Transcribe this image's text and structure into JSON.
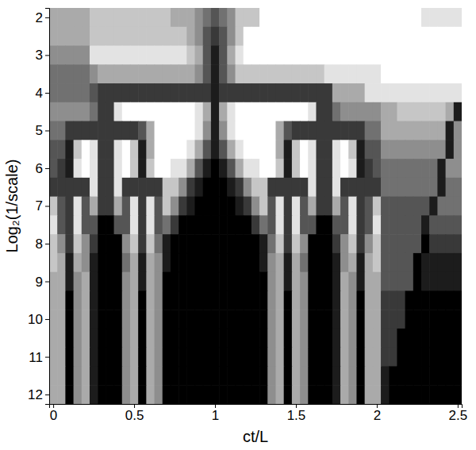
{
  "chart_data": {
    "type": "heatmap",
    "x_label": "ct/L",
    "y_label": "Log₂(1/scale)",
    "xlim": [
      -0.025,
      2.525
    ],
    "ylim": [
      1.75,
      12.25
    ],
    "xticks": [
      0,
      0.5,
      1,
      1.5,
      2,
      2.5
    ],
    "yticks": [
      2,
      3,
      4,
      5,
      6,
      7,
      8,
      9,
      10,
      11,
      12
    ],
    "zlim": [
      0,
      9
    ],
    "x": [
      0,
      0.05,
      0.1,
      0.15,
      0.2,
      0.25,
      0.3,
      0.35,
      0.4,
      0.45,
      0.5,
      0.55,
      0.6,
      0.65,
      0.7,
      0.75,
      0.8,
      0.85,
      0.9,
      0.95,
      1,
      1.05,
      1.1,
      1.15,
      1.2,
      1.25,
      1.3,
      1.35,
      1.4,
      1.45,
      1.5,
      1.55,
      1.6,
      1.65,
      1.7,
      1.75,
      1.8,
      1.85,
      1.9,
      1.95,
      2,
      2.05,
      2.1,
      2.15,
      2.2,
      2.25,
      2.3,
      2.35,
      2.4,
      2.45,
      2.5
    ],
    "y": [
      2,
      2.5,
      3,
      3.5,
      4,
      4.5,
      5,
      5.5,
      6,
      6.5,
      7,
      7.5,
      8,
      8.5,
      9,
      9.5,
      10,
      10.5,
      11,
      11.5,
      12
    ],
    "z": [
      [
        6,
        6,
        6,
        6,
        6,
        7,
        7,
        7,
        7,
        7,
        7,
        7,
        7,
        7,
        7,
        6,
        6,
        6,
        5,
        4,
        3,
        4,
        5,
        7,
        7,
        7,
        9,
        9,
        9,
        9,
        9,
        9,
        9,
        9,
        9,
        9,
        9,
        9,
        9,
        9,
        9,
        9,
        9,
        9,
        9,
        9,
        8,
        8,
        8,
        8,
        8
      ],
      [
        6,
        6,
        6,
        6,
        6,
        7,
        7,
        7,
        7,
        7,
        7,
        7,
        7,
        7,
        7,
        7,
        7,
        6,
        5,
        3,
        2,
        3,
        5,
        7,
        9,
        9,
        9,
        9,
        9,
        9,
        9,
        9,
        9,
        9,
        9,
        9,
        9,
        9,
        9,
        9,
        9,
        9,
        9,
        9,
        9,
        9,
        9,
        9,
        9,
        9,
        9
      ],
      [
        5,
        5,
        5,
        5,
        5,
        8,
        8,
        8,
        8,
        8,
        8,
        8,
        8,
        8,
        8,
        8,
        8,
        7,
        6,
        3,
        1,
        3,
        6,
        8,
        9,
        9,
        9,
        9,
        9,
        9,
        9,
        9,
        9,
        9,
        9,
        9,
        9,
        9,
        9,
        9,
        9,
        9,
        9,
        9,
        9,
        9,
        9,
        9,
        9,
        9,
        9
      ],
      [
        4,
        4,
        4,
        4,
        4,
        5,
        6,
        6,
        6,
        6,
        6,
        6,
        6,
        6,
        6,
        6,
        6,
        6,
        5,
        3,
        1,
        3,
        5,
        7,
        7,
        7,
        7,
        7,
        7,
        7,
        7,
        7,
        7,
        7,
        8,
        8,
        8,
        8,
        8,
        8,
        8,
        9,
        9,
        9,
        9,
        9,
        9,
        9,
        9,
        9,
        9
      ],
      [
        4,
        4,
        4,
        4,
        4,
        3,
        2,
        2,
        2,
        2,
        2,
        2,
        2,
        2,
        2,
        2,
        2,
        2,
        2,
        2,
        1,
        2,
        2,
        2,
        2,
        2,
        2,
        2,
        2,
        2,
        2,
        2,
        2,
        2,
        2,
        6,
        6,
        6,
        6,
        8,
        8,
        8,
        8,
        8,
        8,
        8,
        8,
        8,
        8,
        8,
        8
      ],
      [
        5,
        5,
        5,
        5,
        5,
        4,
        2,
        2,
        8,
        9,
        9,
        9,
        9,
        9,
        9,
        9,
        9,
        9,
        8,
        6,
        1,
        6,
        8,
        9,
        9,
        9,
        9,
        9,
        9,
        9,
        9,
        9,
        8,
        2,
        2,
        4,
        5,
        5,
        5,
        5,
        5,
        6,
        6,
        7,
        7,
        7,
        7,
        7,
        7,
        6,
        1
      ],
      [
        4,
        4,
        2,
        2,
        2,
        2,
        2,
        2,
        2,
        2,
        2,
        3,
        6,
        9,
        9,
        9,
        9,
        9,
        8,
        5,
        1,
        5,
        8,
        9,
        9,
        9,
        9,
        9,
        6,
        3,
        2,
        2,
        2,
        2,
        2,
        2,
        2,
        2,
        2,
        4,
        4,
        6,
        6,
        6,
        6,
        6,
        6,
        6,
        6,
        1,
        5
      ],
      [
        3,
        3,
        1,
        7,
        9,
        8,
        2,
        2,
        8,
        9,
        7,
        1,
        6,
        9,
        9,
        9,
        9,
        8,
        6,
        3,
        1,
        3,
        6,
        8,
        9,
        9,
        9,
        9,
        6,
        1,
        7,
        9,
        8,
        2,
        2,
        8,
        9,
        7,
        1,
        3,
        3,
        5,
        5,
        5,
        5,
        5,
        5,
        5,
        5,
        1,
        5
      ],
      [
        3,
        2,
        1,
        8,
        9,
        8,
        2,
        2,
        8,
        9,
        7,
        1,
        7,
        9,
        9,
        8,
        8,
        6,
        3,
        1,
        0,
        1,
        3,
        6,
        8,
        8,
        9,
        9,
        7,
        1,
        7,
        9,
        8,
        2,
        2,
        8,
        9,
        8,
        1,
        2,
        3,
        4,
        4,
        4,
        4,
        4,
        4,
        4,
        1,
        5,
        5
      ],
      [
        2,
        2,
        2,
        2,
        2,
        8,
        2,
        2,
        8,
        2,
        2,
        2,
        2,
        2,
        7,
        7,
        5,
        2,
        1,
        0,
        0,
        0,
        1,
        2,
        5,
        7,
        7,
        2,
        2,
        2,
        2,
        2,
        8,
        2,
        2,
        8,
        2,
        2,
        2,
        2,
        2,
        4,
        4,
        4,
        4,
        4,
        4,
        4,
        1,
        4,
        4
      ],
      [
        7,
        3,
        2,
        8,
        3,
        6,
        2,
        2,
        6,
        3,
        8,
        2,
        8,
        3,
        7,
        5,
        2,
        1,
        0,
        0,
        0,
        0,
        0,
        1,
        2,
        5,
        7,
        3,
        8,
        2,
        8,
        3,
        6,
        2,
        2,
        6,
        3,
        8,
        2,
        3,
        7,
        3,
        3,
        3,
        3,
        3,
        3,
        1,
        4,
        4,
        4
      ],
      [
        8,
        3,
        2,
        8,
        3,
        3,
        0,
        0,
        3,
        3,
        8,
        2,
        8,
        3,
        4,
        2,
        0,
        0,
        0,
        0,
        0,
        0,
        0,
        0,
        0,
        2,
        4,
        3,
        8,
        2,
        8,
        3,
        3,
        0,
        0,
        3,
        3,
        8,
        2,
        3,
        8,
        3,
        3,
        3,
        3,
        3,
        1,
        3,
        3,
        3,
        3
      ],
      [
        7,
        5,
        2,
        7,
        5,
        2,
        0,
        0,
        0,
        5,
        7,
        2,
        7,
        4,
        1,
        0,
        0,
        0,
        0,
        0,
        0,
        0,
        0,
        0,
        0,
        0,
        1,
        4,
        7,
        2,
        7,
        5,
        0,
        0,
        0,
        2,
        5,
        7,
        2,
        5,
        7,
        3,
        3,
        3,
        3,
        3,
        0,
        2,
        2,
        2,
        2
      ],
      [
        7,
        6,
        1,
        6,
        5,
        1,
        0,
        0,
        0,
        4,
        6,
        1,
        6,
        5,
        1,
        0,
        0,
        0,
        0,
        0,
        0,
        0,
        0,
        0,
        0,
        0,
        1,
        5,
        6,
        1,
        6,
        4,
        0,
        0,
        0,
        1,
        5,
        6,
        1,
        6,
        7,
        3,
        3,
        3,
        3,
        0,
        1,
        1,
        1,
        1,
        1
      ],
      [
        6,
        6,
        1,
        5,
        6,
        1,
        0,
        0,
        0,
        5,
        6,
        1,
        6,
        5,
        0,
        0,
        0,
        0,
        0,
        0,
        0,
        0,
        0,
        0,
        0,
        0,
        0,
        5,
        6,
        1,
        6,
        5,
        0,
        0,
        0,
        1,
        6,
        5,
        1,
        6,
        6,
        3,
        3,
        3,
        3,
        0,
        1,
        1,
        1,
        1,
        1
      ],
      [
        6,
        6,
        0,
        5,
        6,
        1,
        0,
        0,
        0,
        5,
        6,
        0,
        6,
        5,
        0,
        0,
        0,
        0,
        0,
        0,
        0,
        0,
        0,
        0,
        0,
        0,
        0,
        5,
        6,
        0,
        6,
        5,
        0,
        0,
        0,
        1,
        6,
        5,
        0,
        6,
        6,
        2,
        2,
        2,
        0,
        0,
        0,
        0,
        0,
        0,
        0
      ],
      [
        6,
        6,
        0,
        5,
        6,
        1,
        0,
        0,
        0,
        5,
        6,
        0,
        6,
        5,
        0,
        0,
        0,
        0,
        0,
        0,
        0,
        0,
        0,
        0,
        0,
        0,
        0,
        5,
        6,
        0,
        6,
        5,
        0,
        0,
        0,
        1,
        6,
        5,
        0,
        6,
        6,
        2,
        2,
        2,
        0,
        0,
        0,
        0,
        0,
        0,
        0
      ],
      [
        6,
        6,
        0,
        5,
        6,
        1,
        0,
        0,
        0,
        5,
        6,
        0,
        6,
        5,
        0,
        0,
        0,
        0,
        0,
        0,
        0,
        0,
        0,
        0,
        0,
        0,
        0,
        5,
        6,
        0,
        6,
        5,
        0,
        0,
        0,
        1,
        6,
        5,
        0,
        6,
        6,
        2,
        2,
        0,
        0,
        0,
        0,
        0,
        0,
        0,
        0
      ],
      [
        6,
        6,
        0,
        5,
        6,
        1,
        0,
        0,
        0,
        5,
        6,
        0,
        6,
        5,
        0,
        0,
        0,
        0,
        0,
        0,
        0,
        0,
        0,
        0,
        0,
        0,
        0,
        5,
        6,
        0,
        6,
        5,
        0,
        0,
        0,
        1,
        6,
        5,
        0,
        6,
        6,
        2,
        2,
        0,
        0,
        0,
        0,
        0,
        0,
        0,
        0
      ],
      [
        6,
        6,
        0,
        5,
        6,
        1,
        0,
        0,
        0,
        5,
        6,
        0,
        6,
        5,
        0,
        0,
        0,
        0,
        0,
        0,
        0,
        0,
        0,
        0,
        0,
        0,
        0,
        5,
        6,
        0,
        6,
        5,
        0,
        0,
        0,
        1,
        6,
        5,
        0,
        6,
        6,
        1,
        0,
        0,
        0,
        0,
        0,
        0,
        0,
        0,
        0
      ],
      [
        6,
        6,
        0,
        5,
        6,
        1,
        0,
        0,
        0,
        5,
        6,
        0,
        6,
        5,
        0,
        0,
        0,
        0,
        0,
        0,
        0,
        0,
        0,
        0,
        0,
        0,
        0,
        5,
        6,
        0,
        6,
        5,
        0,
        0,
        0,
        1,
        6,
        5,
        0,
        6,
        6,
        1,
        0,
        0,
        0,
        0,
        0,
        0,
        0,
        0,
        0
      ]
    ]
  }
}
